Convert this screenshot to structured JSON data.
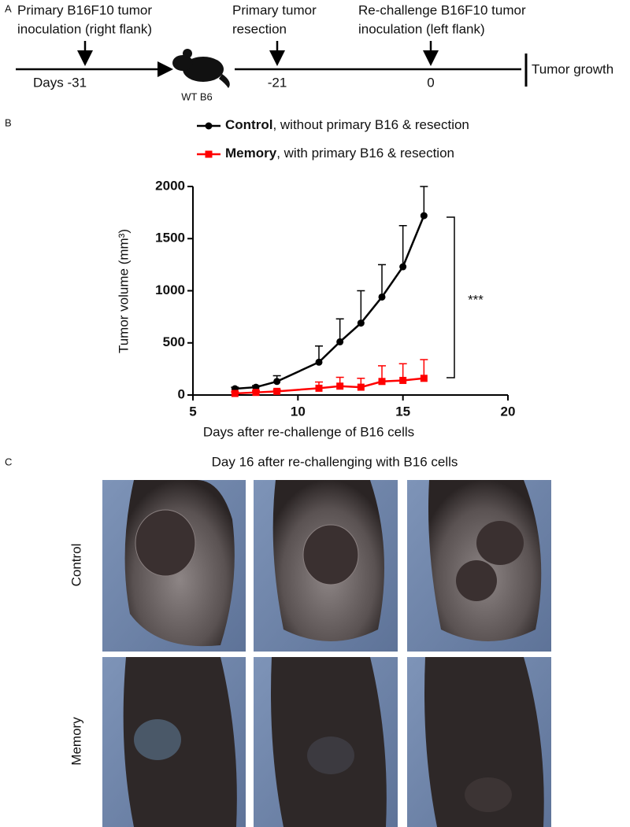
{
  "panel_a": {
    "label": "A",
    "events": [
      {
        "text_1": "Primary B16F10 tumor",
        "text_2": "inoculation (right flank)",
        "day": "Days -31"
      },
      {
        "text_1": "Primary tumor",
        "text_2": "resection",
        "day": "-21"
      },
      {
        "text_1": "Re-challenge B16F10 tumor",
        "text_2": "inoculation (left flank)",
        "day": "0"
      }
    ],
    "mouse_label": "WT B6",
    "end_label": "Tumor growth"
  },
  "chart_data": {
    "type": "line",
    "panel_label": "B",
    "x_label": "Days after re-challenge of B16 cells",
    "y_label": "Tumor volume (mm³)",
    "x": [
      7,
      8,
      9,
      11,
      12,
      13,
      14,
      15,
      16
    ],
    "series": [
      {
        "name": "Control",
        "legend_note": ", without primary B16 & resection",
        "color": "#000000",
        "marker": "circle",
        "values": [
          60,
          75,
          130,
          315,
          510,
          690,
          940,
          1230,
          1720
        ],
        "errors": [
          15,
          15,
          55,
          155,
          220,
          310,
          310,
          395,
          280
        ]
      },
      {
        "name": "Memory",
        "legend_note": ", with primary B16 & resection",
        "color": "#ff0000",
        "marker": "square",
        "values": [
          15,
          25,
          35,
          65,
          85,
          75,
          130,
          140,
          160
        ],
        "errors": [
          15,
          15,
          15,
          60,
          85,
          85,
          150,
          160,
          180
        ]
      }
    ],
    "xlim": [
      5,
      20
    ],
    "ylim": [
      0,
      2000
    ],
    "xticks": [
      5,
      10,
      15,
      20
    ],
    "yticks": [
      0,
      500,
      1000,
      1500,
      2000
    ],
    "significance": "***"
  },
  "panel_c": {
    "label": "C",
    "title": "Day 16 after re-challenging with B16 cells",
    "rows": [
      "Control",
      "Memory"
    ]
  }
}
